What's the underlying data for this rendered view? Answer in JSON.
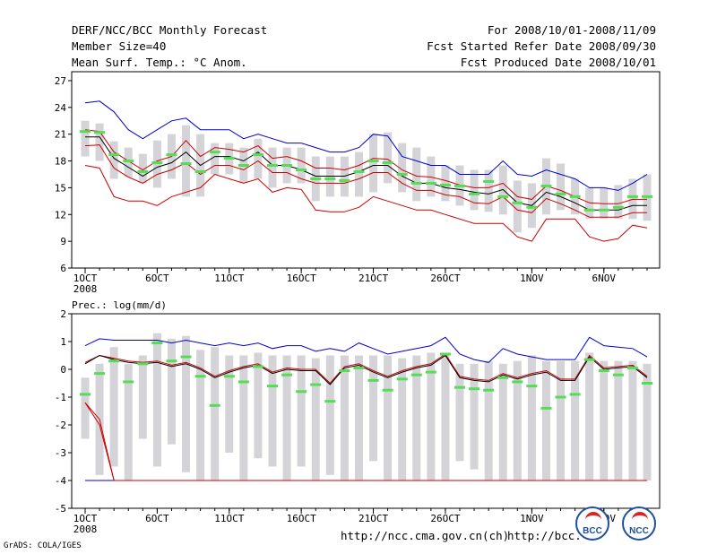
{
  "header": {
    "title": "DERF/NCC/BCC Monthly Forecast",
    "member_size": "Member Size=40",
    "variable": "Mean Surf. Temp.: °C Anom.",
    "period": "For 2008/10/01-2008/11/09",
    "refer_date": "Fcst Started Refer Date 2008/09/30",
    "produced_date": "Fcst Produced Date 2008/10/01"
  },
  "footer": {
    "credit": "GrADS: COLA/IGES",
    "url1": "http://ncc.cma.gov.cn(ch)",
    "url2": "http://bcc.",
    "logo1": "BCC",
    "logo2": "NCC"
  },
  "colors": {
    "box": "#d4d4d8",
    "median": "#55dd55",
    "mean": "#000000",
    "upper": "#0000cc",
    "lower": "#cc0000"
  },
  "chart_data": [
    {
      "type": "line",
      "title": "Mean Surf. Temp.: °C Anom.",
      "ylim": [
        6,
        28
      ],
      "yticks": [
        6,
        9,
        12,
        15,
        18,
        21,
        24,
        27
      ],
      "x": [
        1,
        2,
        3,
        4,
        5,
        6,
        7,
        8,
        9,
        10,
        11,
        12,
        13,
        14,
        15,
        16,
        17,
        18,
        19,
        20,
        21,
        22,
        23,
        24,
        25,
        26,
        27,
        28,
        29,
        30,
        31,
        32,
        33,
        34,
        35,
        36,
        37,
        38,
        39,
        40
      ],
      "xticks": [
        {
          "day": 1,
          "label": "1OCT",
          "sub": "2008"
        },
        {
          "day": 6,
          "label": "6OCT"
        },
        {
          "day": 11,
          "label": "11OCT"
        },
        {
          "day": 16,
          "label": "16OCT"
        },
        {
          "day": 21,
          "label": "21OCT"
        },
        {
          "day": 26,
          "label": "26OCT"
        },
        {
          "day": 32,
          "label": "1NOV"
        },
        {
          "day": 37,
          "label": "6NOV"
        }
      ],
      "box_top": [
        22.5,
        22.2,
        20.2,
        19.5,
        18.8,
        20.3,
        21,
        22,
        21,
        20,
        20,
        19.5,
        20.5,
        19.5,
        19.5,
        19.5,
        18.5,
        18.5,
        18.5,
        19,
        21,
        21.2,
        20,
        19.5,
        18.5,
        17.5,
        17.5,
        17,
        17,
        17.5,
        15.8,
        15.5,
        18.3,
        17.7,
        16,
        15,
        15,
        15.3,
        16,
        16.5
      ],
      "box_bottom": [
        18.5,
        18,
        16,
        16.2,
        15.5,
        15,
        16,
        14,
        14,
        16.5,
        16.5,
        15.5,
        16,
        15,
        15.5,
        15.5,
        13.5,
        14,
        14,
        14,
        14.5,
        15.5,
        14.5,
        13.5,
        14,
        13.5,
        13,
        12.5,
        12.3,
        12,
        10,
        10.5,
        12,
        12.5,
        12,
        11.5,
        11.5,
        11.5,
        11.5,
        11.3
      ],
      "median": [
        21.3,
        21.2,
        18.7,
        18,
        16.8,
        17.8,
        18.7,
        17.7,
        16.8,
        19,
        18.3,
        17.5,
        18.7,
        17.5,
        17.5,
        17,
        16,
        16,
        15.8,
        16.8,
        18,
        17.8,
        16.5,
        15.5,
        15.5,
        15.3,
        15.2,
        14.3,
        15.7,
        14,
        13.3,
        12.8,
        15.2,
        14.3,
        14,
        12.5,
        12.5,
        12.8,
        14,
        14
      ],
      "mean": [
        20.7,
        20.7,
        18.3,
        17.3,
        16.3,
        17.3,
        17.8,
        19,
        17.5,
        18.5,
        18.5,
        18,
        19,
        17.5,
        17.5,
        17,
        16.3,
        16.3,
        16.3,
        16.8,
        17.5,
        17.5,
        16.3,
        15.5,
        15.5,
        15,
        14.8,
        14.5,
        14.3,
        14.8,
        13.3,
        13,
        14.5,
        14,
        13.3,
        12.5,
        12.5,
        12.5,
        13,
        13
      ],
      "upper": [
        24.5,
        24.7,
        23.5,
        21.5,
        20.5,
        21.5,
        22.5,
        22.8,
        21.5,
        21.5,
        21.5,
        20.5,
        21,
        20.5,
        20,
        20,
        19.5,
        19,
        19,
        19.5,
        21,
        20.8,
        18.5,
        18,
        17.5,
        17.5,
        16.5,
        16.5,
        16.5,
        18,
        16.5,
        16.3,
        17,
        16.5,
        16,
        15,
        15,
        14.7,
        15.5,
        16.5
      ],
      "lower": [
        17.5,
        17.2,
        14,
        13.5,
        13.5,
        13,
        14,
        14.5,
        15,
        16.5,
        16,
        15.5,
        16,
        14.5,
        15,
        14.8,
        12.5,
        12.3,
        12.3,
        12.8,
        14,
        13.5,
        13,
        12.5,
        12.5,
        12,
        11.5,
        11,
        11,
        11,
        9.5,
        9,
        11.5,
        11.5,
        11.5,
        9.5,
        9,
        9.3,
        10.8,
        10.5
      ],
      "upper_mean": [
        21.5,
        21.3,
        19,
        18,
        17,
        18,
        18.5,
        20.3,
        18.5,
        19.5,
        19.3,
        19,
        19.7,
        18.3,
        18.5,
        18,
        17.2,
        17.2,
        17,
        17.5,
        18.3,
        18.2,
        17,
        16.3,
        16.2,
        15.8,
        15.3,
        15,
        15,
        15.5,
        14,
        13.7,
        15.2,
        14.7,
        14,
        13.3,
        13.2,
        13.2,
        13.7,
        13.7
      ],
      "lower_mean": [
        19.7,
        19.8,
        17.2,
        16.2,
        15.5,
        16.5,
        17,
        17.8,
        16.5,
        17.5,
        17.5,
        17,
        18,
        16.7,
        16.7,
        16,
        15.5,
        15.5,
        15.5,
        16,
        16.7,
        16.7,
        15.5,
        14.7,
        14.7,
        14.2,
        14,
        13.3,
        13.2,
        14,
        12.5,
        12.2,
        13.8,
        13.2,
        12.5,
        11.7,
        11.7,
        11.7,
        12.2,
        12.2
      ]
    },
    {
      "type": "line",
      "title": "Prec.: log(mm/d)",
      "ylim": [
        -5,
        2
      ],
      "yticks": [
        -5,
        -4,
        -3,
        -2,
        -1,
        0,
        1,
        2
      ],
      "x": [
        1,
        2,
        3,
        4,
        5,
        6,
        7,
        8,
        9,
        10,
        11,
        12,
        13,
        14,
        15,
        16,
        17,
        18,
        19,
        20,
        21,
        22,
        23,
        24,
        25,
        26,
        27,
        28,
        29,
        30,
        31,
        32,
        33,
        34,
        35,
        36,
        37,
        38,
        39,
        40
      ],
      "xticks": [
        {
          "day": 1,
          "label": "1OCT",
          "sub": "2008"
        },
        {
          "day": 6,
          "label": "6OCT"
        },
        {
          "day": 11,
          "label": "11OCT"
        },
        {
          "day": 16,
          "label": "16OCT"
        },
        {
          "day": 21,
          "label": "21OCT"
        },
        {
          "day": 26,
          "label": "26OCT"
        },
        {
          "day": 32,
          "label": "1NOV"
        },
        {
          "day": 37,
          "label": "6NOV"
        }
      ],
      "box_top": [
        -0.3,
        0.2,
        0.8,
        0.2,
        0.5,
        1.3,
        1.1,
        1.2,
        0.7,
        0.8,
        0.5,
        0.5,
        0.6,
        0.5,
        0.5,
        0.5,
        0.4,
        0.5,
        0.5,
        0.5,
        0.5,
        0.5,
        0.4,
        0.5,
        0.6,
        0.5,
        0.2,
        0.2,
        0.3,
        0.2,
        0.3,
        0.5,
        0.3,
        0.3,
        0.3,
        0.6,
        0.3,
        0.3,
        0.3,
        0.2
      ],
      "box_bottom": [
        -2.5,
        -3.8,
        -3.5,
        -4,
        -2.5,
        -3.5,
        -2.7,
        -3.7,
        -4,
        -4,
        -3,
        -4,
        -3.2,
        -3.5,
        -4,
        -3.5,
        -4,
        -3.8,
        -4,
        -4,
        -3.3,
        -4,
        -4,
        -4,
        -4,
        -4,
        -3.3,
        -3.6,
        -4,
        -4,
        -4,
        -4,
        -4,
        -4,
        -4,
        -4,
        -4,
        -4,
        -4,
        -4
      ],
      "median": [
        -0.9,
        -0.15,
        0.3,
        -0.45,
        0.2,
        0.95,
        0.3,
        0.45,
        -0.25,
        -1.3,
        -0.25,
        -0.45,
        0.1,
        -0.6,
        -0.2,
        -0.8,
        -0.55,
        -1.15,
        -0.05,
        0.05,
        -0.4,
        -0.75,
        -0.35,
        -0.2,
        -0.1,
        0.55,
        -0.65,
        -0.7,
        -0.75,
        -0.3,
        -0.45,
        -0.6,
        -1.4,
        -1.0,
        -0.9,
        0.35,
        -0.05,
        -0.2,
        0.05,
        -0.5
      ],
      "mean": [
        0.2,
        0.5,
        0.35,
        0.25,
        0.2,
        0.25,
        0.1,
        0.2,
        0,
        -0.3,
        -0.1,
        0.05,
        0.15,
        -0.15,
        0,
        -0.05,
        -0.05,
        -0.55,
        0.05,
        0.15,
        -0.1,
        -0.3,
        -0.1,
        0.05,
        0.15,
        0.5,
        -0.3,
        -0.4,
        -0.45,
        -0.2,
        -0.35,
        -0.2,
        -0.1,
        -0.4,
        -0.4,
        0.45,
        0,
        0.05,
        0.1,
        -0.3
      ],
      "upper": [
        0.85,
        1.1,
        1.05,
        1.05,
        1.05,
        1.05,
        0.95,
        1.05,
        0.95,
        0.85,
        0.95,
        0.85,
        0.95,
        0.75,
        0.85,
        0.85,
        0.65,
        0.75,
        0.65,
        0.95,
        0.75,
        0.55,
        0.65,
        0.75,
        0.85,
        1.15,
        0.55,
        0.35,
        0.25,
        0.75,
        0.55,
        0.45,
        0.35,
        0.35,
        0.35,
        1.15,
        0.85,
        0.8,
        0.75,
        0.45
      ],
      "lower": [
        -1.2,
        -2,
        -4,
        -4,
        -4,
        -4,
        -4,
        -4,
        -4,
        -4,
        -4,
        -4,
        -4,
        -4,
        -4,
        -4,
        -4,
        -4,
        -4,
        -4,
        -4,
        -4,
        -4,
        -4,
        -4,
        -4,
        -4,
        -4,
        -4,
        -4,
        -4,
        -4,
        -4,
        -4,
        -4,
        -4,
        -4,
        -4,
        -4,
        -4
      ],
      "upper_mean": [
        0.25,
        0.5,
        0.4,
        0.3,
        0.25,
        0.3,
        0.15,
        0.25,
        0.05,
        -0.25,
        -0.05,
        0.1,
        0.2,
        -0.1,
        0.05,
        0,
        0,
        -0.5,
        0.1,
        0.2,
        -0.05,
        -0.25,
        -0.05,
        0.1,
        0.2,
        0.55,
        -0.25,
        -0.35,
        -0.4,
        -0.15,
        -0.3,
        -0.15,
        -0.05,
        -0.35,
        -0.35,
        0.5,
        0.05,
        0.1,
        0.15,
        -0.25
      ],
      "lower_mean": [
        -1.2,
        -1.8,
        -4,
        -4,
        -4,
        -4,
        -4,
        -4,
        -4,
        -4,
        -4,
        -4,
        -4,
        -4,
        -4,
        -4,
        -4,
        -4,
        -4,
        -4,
        -4,
        -4,
        -4,
        -4,
        -4,
        -4,
        -4,
        -4,
        -4,
        -4,
        -4,
        -4,
        -4,
        -4,
        -4,
        -4,
        -4,
        -4,
        -4,
        -4
      ],
      "blue_floor": [
        -4,
        -4,
        -4
      ]
    }
  ]
}
